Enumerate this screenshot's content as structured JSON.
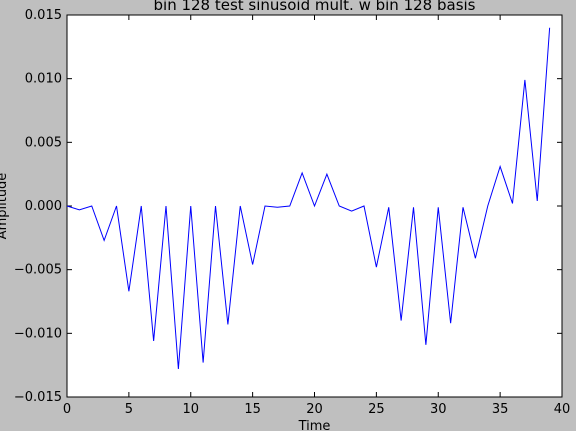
{
  "chart_data": {
    "type": "line",
    "title": "bin 128 test sinusoid mult. w bin 128 basis",
    "xlabel": "Time",
    "ylabel": "Amplitude",
    "xlim": [
      0,
      40
    ],
    "ylim": [
      -0.015,
      0.015
    ],
    "x_ticks": [
      0,
      5,
      10,
      15,
      20,
      25,
      30,
      35,
      40
    ],
    "x_tick_labels": [
      "0",
      "5",
      "10",
      "15",
      "20",
      "25",
      "30",
      "35",
      "40"
    ],
    "y_ticks": [
      0.015,
      0.01,
      0.005,
      0.0,
      -0.005,
      -0.01,
      -0.015
    ],
    "y_tick_labels": [
      "0.015",
      "0.010",
      "0.005",
      "0.000",
      "−0.005",
      "−0.010",
      "−0.015"
    ],
    "grid": false,
    "legend": "none",
    "series": [
      {
        "color": "#0000ff",
        "x": [
          0,
          1,
          2,
          3,
          4,
          5,
          6,
          7,
          8,
          9,
          10,
          11,
          12,
          13,
          14,
          15,
          16,
          17,
          18,
          19,
          20,
          21,
          22,
          23,
          24,
          25,
          26,
          27,
          28,
          29,
          30,
          31,
          32,
          33,
          34,
          35,
          36,
          37,
          38,
          39
        ],
        "y": [
          0.0,
          -0.0003,
          0.0,
          -0.0027,
          0.0,
          -0.0067,
          0.0,
          -0.0106,
          0.0,
          -0.0128,
          0.0,
          -0.0123,
          0.0,
          -0.0093,
          0.0,
          -0.0046,
          0.0,
          -0.0001,
          0.0,
          0.0026,
          0.0,
          0.0025,
          0.0,
          -0.0004,
          0.0,
          -0.0048,
          -0.0001,
          -0.009,
          -0.0001,
          -0.0109,
          -0.0001,
          -0.0092,
          -0.0001,
          -0.0041,
          0.0,
          0.0031,
          0.0002,
          0.0099,
          0.0004,
          0.014
        ]
      }
    ]
  }
}
